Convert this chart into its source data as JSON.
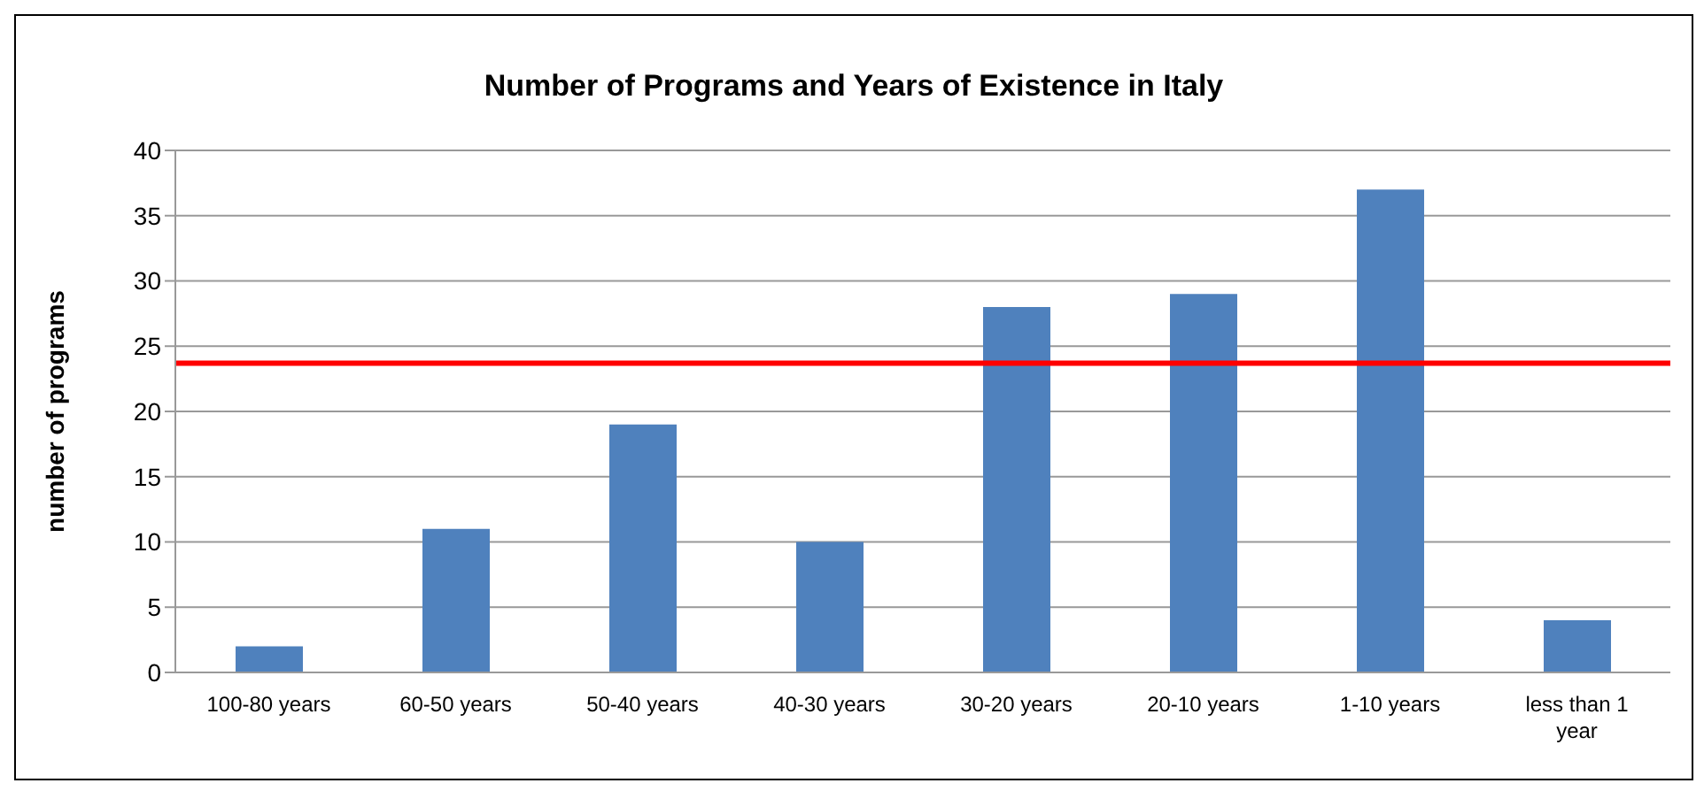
{
  "chart_data": {
    "type": "bar",
    "title": "Number of Programs and Years of  Existence in Italy",
    "ylabel": "number of programs",
    "categories": [
      "100-80 years",
      "60-50 years",
      "50-40 years",
      "40-30 years",
      "30-20 years",
      "20-10 years",
      "1-10 years",
      "less than 1 year"
    ],
    "values": [
      2,
      11,
      19,
      10,
      28,
      29,
      37,
      4
    ],
    "color": "#4f81bd",
    "ylim": [
      0,
      40
    ],
    "yticks": [
      0,
      5,
      10,
      15,
      20,
      25,
      30,
      35,
      40
    ],
    "grid": "y",
    "ref_lines": [
      {
        "axis": "y",
        "value": 23.7,
        "color": "#ff0000"
      }
    ]
  }
}
